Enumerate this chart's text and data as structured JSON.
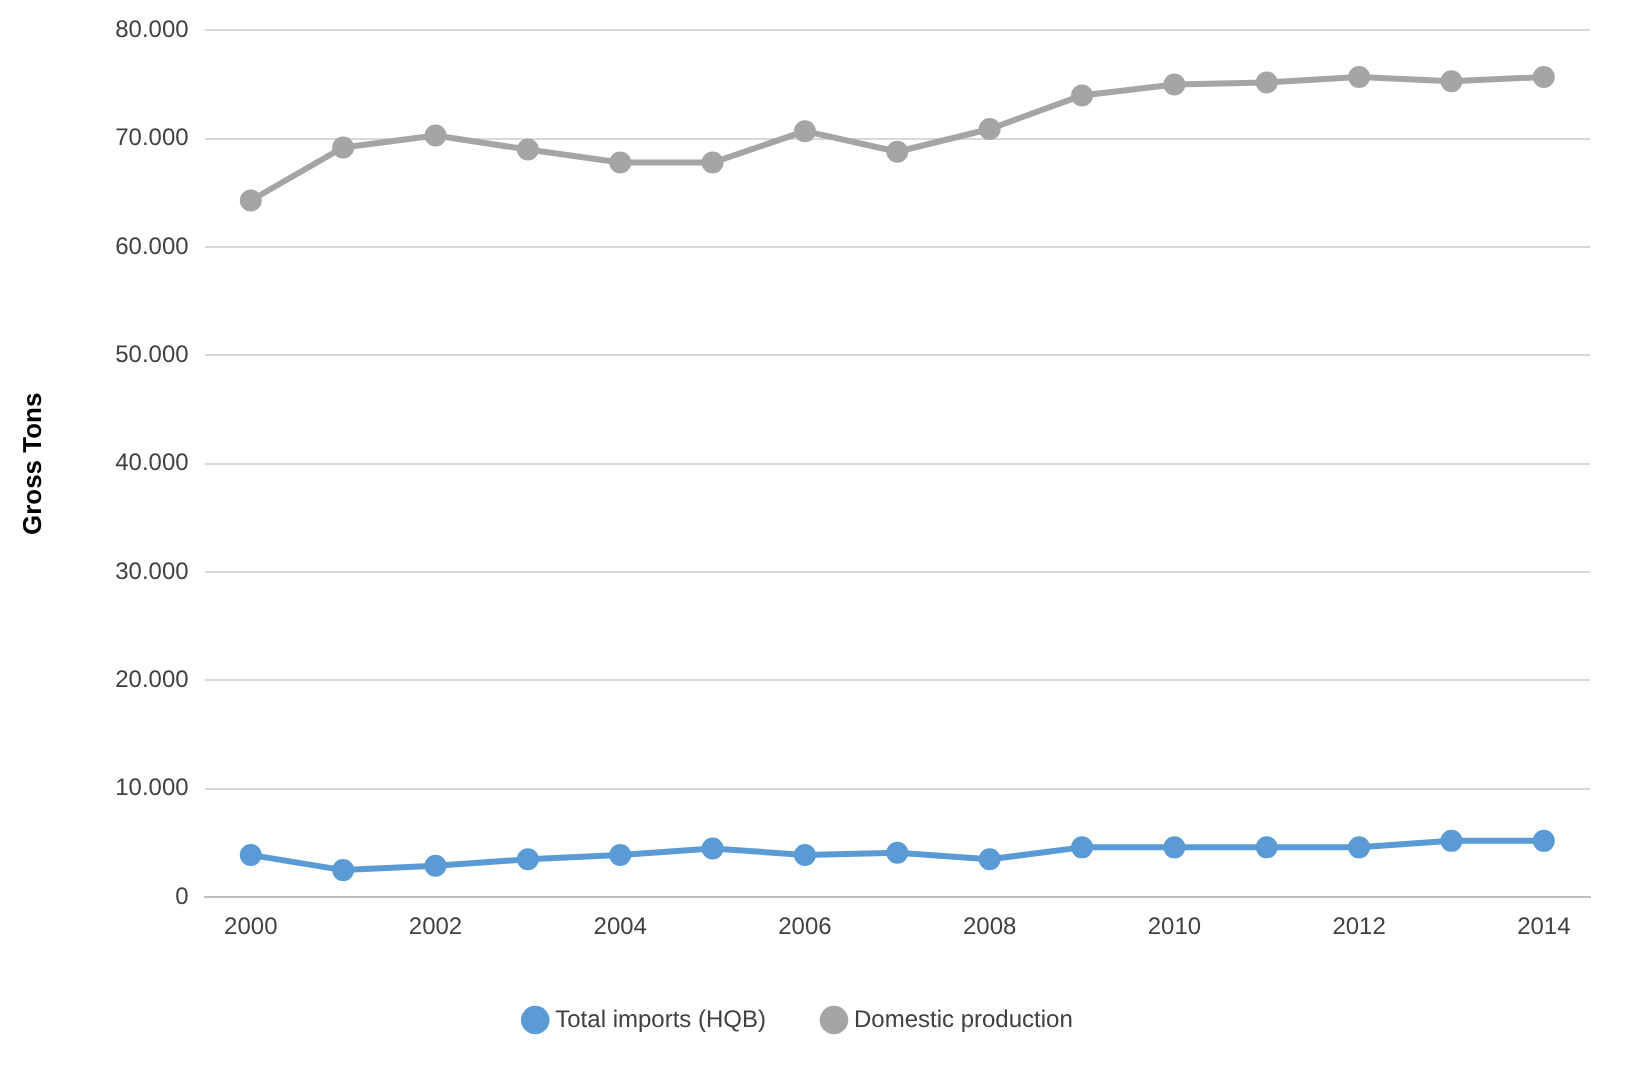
{
  "chart_data": {
    "type": "line",
    "ylabel": "Gross Tons",
    "categories": [
      "2000",
      null,
      "2002",
      null,
      "2004",
      null,
      "2006",
      null,
      "2008",
      null,
      "2010",
      null,
      "2012",
      null,
      "2014"
    ],
    "series": [
      {
        "name": "Total imports (HQB)",
        "color": "#5b9bd5",
        "values": [
          3900,
          2500,
          2900,
          3500,
          3900,
          4500,
          3900,
          4100,
          3500,
          4600,
          4600,
          4600,
          4600,
          5200,
          5200
        ]
      },
      {
        "name": "Domestic production",
        "color": "#a5a5a5",
        "values": [
          64300,
          69200,
          70300,
          69000,
          67800,
          67800,
          70700,
          68800,
          70900,
          74000,
          75000,
          75200,
          75700,
          75300,
          75700
        ]
      }
    ],
    "ylim": [
      0,
      80000
    ],
    "yticks": [
      0,
      {
        "value": 10000,
        "label": "10.000"
      },
      {
        "value": 20000,
        "label": "20.000"
      },
      {
        "value": 30000,
        "label": "30.000"
      },
      {
        "value": 40000,
        "label": "40.000"
      },
      {
        "value": 50000,
        "label": "50.000"
      },
      {
        "value": 60000,
        "label": "60.000"
      },
      {
        "value": 70000,
        "label": "70.000"
      },
      {
        "value": 80000,
        "label": "80.000"
      }
    ],
    "grid": "y",
    "legend": "bottom",
    "marker": "circle",
    "line_style": "solid"
  }
}
